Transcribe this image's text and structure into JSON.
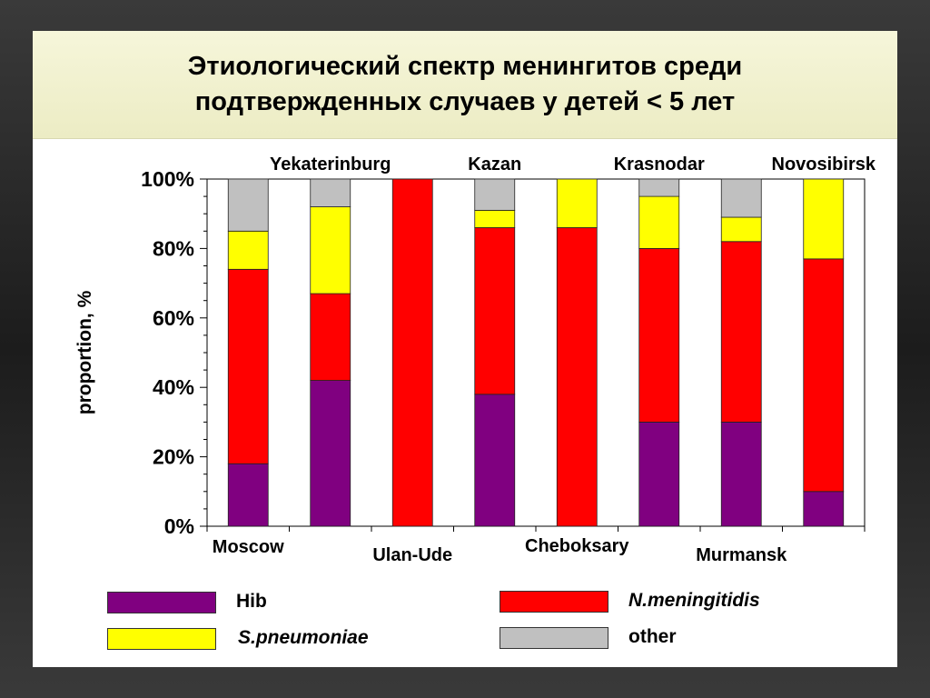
{
  "slide": {
    "title_line1": "Этиологический спектр менингитов среди",
    "title_line2": "подтвержденных случаев у детей < 5 лет"
  },
  "chart_data": {
    "type": "bar",
    "stacked": true,
    "categories": [
      "Moscow",
      "Yekaterinburg",
      "Ulan-Ude",
      "Kazan",
      "Cheboksary",
      "Krasnodar",
      "Murmansk",
      "Novosibirsk"
    ],
    "series": [
      {
        "name": "Hib",
        "color": "#800080",
        "values": [
          18,
          42,
          0,
          38,
          0,
          30,
          30,
          10
        ]
      },
      {
        "name": "N.meningitidis",
        "color": "#ff0000",
        "values": [
          56,
          25,
          100,
          48,
          86,
          50,
          52,
          67
        ]
      },
      {
        "name": "S.pneumoniae",
        "color": "#ffff00",
        "values": [
          11,
          25,
          0,
          5,
          14,
          15,
          7,
          23
        ]
      },
      {
        "name": "other",
        "color": "#c0c0c0",
        "values": [
          15,
          8,
          0,
          9,
          0,
          5,
          11,
          0
        ]
      }
    ],
    "ylabel": "proportion, %",
    "ylim": [
      0,
      100
    ],
    "yticks": [
      "0%",
      "20%",
      "40%",
      "60%",
      "80%",
      "100%"
    ],
    "legend_position": "bottom",
    "grid": false
  }
}
